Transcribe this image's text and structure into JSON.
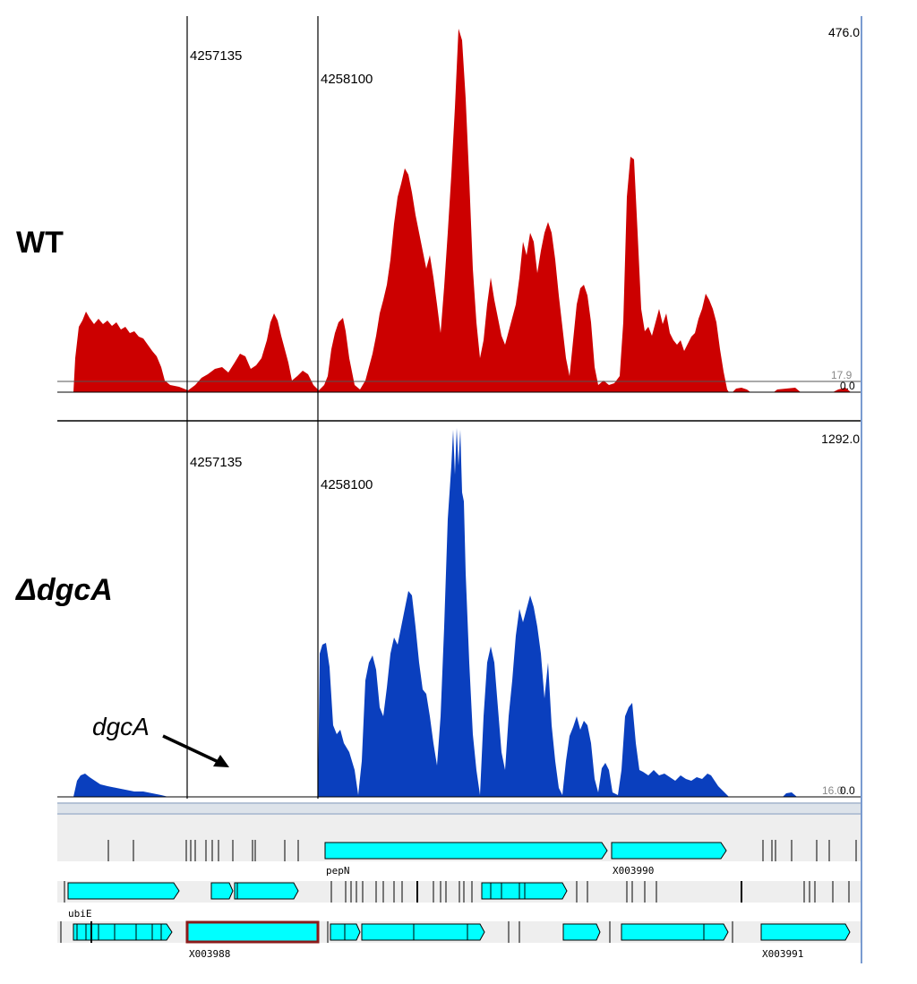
{
  "samples": [
    {
      "id": "wt",
      "label": "WT",
      "color": "#cc0000",
      "scale_max": "476.0",
      "baseline_value": "17.9",
      "zero": "0.0"
    },
    {
      "id": "dgca",
      "label": "ΔdgcA",
      "color": "#0a3fbe",
      "scale_max": "1292.0",
      "baseline_value": "16.0",
      "zero": "0.0"
    }
  ],
  "positions": [
    "4257135",
    "4258100"
  ],
  "annotation": {
    "text": "dgcA"
  },
  "genes": {
    "pepN": "pepN",
    "x3990": "X003990",
    "ubiE": "ubiE",
    "x3988": "X003988",
    "x3991": "X003991"
  },
  "colors": {
    "gene_fill": "#00ffff",
    "gene_highlight_border": "#8b1a1a",
    "track_bg": "#eeeeee"
  }
}
